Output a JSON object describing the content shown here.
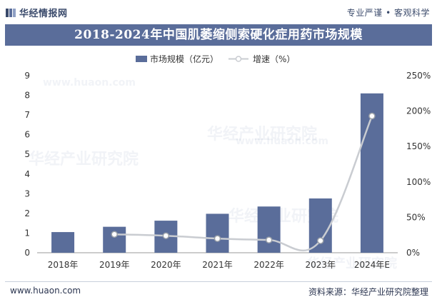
{
  "header": {
    "logo_text": "华经情报网",
    "slogan": "专业严谨 • 客观科学"
  },
  "chart_data": {
    "type": "bar+line",
    "title": "2018-2024年中国肌萎缩侧索硬化症用药市场规模",
    "categories": [
      "2018年",
      "2019年",
      "2020年",
      "2021年",
      "2022年",
      "2023年",
      "2024年E"
    ],
    "series": [
      {
        "name": "市场规模（亿元）",
        "kind": "bar",
        "axis": "left",
        "color": "#5a6d9a",
        "values": [
          1.05,
          1.32,
          1.63,
          1.98,
          2.35,
          2.76,
          8.1
        ]
      },
      {
        "name": "增速（%）",
        "kind": "line",
        "axis": "right",
        "color": "#c9ccd1",
        "values": [
          null,
          26,
          24,
          20,
          18,
          17,
          193
        ]
      }
    ],
    "y_left": {
      "min": 0,
      "max": 9,
      "ticks": [
        "0",
        "1",
        "2",
        "3",
        "4",
        "5",
        "6",
        "7",
        "8",
        "9"
      ]
    },
    "y_right": {
      "min": 0,
      "max": 250,
      "ticks": [
        "0%",
        "50%",
        "100%",
        "150%",
        "200%",
        "250%"
      ]
    },
    "legend": [
      "市场规模（亿元）",
      "增速（%）"
    ],
    "legend_position": "top-center"
  },
  "watermark": {
    "brand": "华经产业研究院",
    "url": "www.huaon.com"
  },
  "footer": {
    "website": "www.huaon.com",
    "source": "资料来源：华经产业研究院整理"
  }
}
